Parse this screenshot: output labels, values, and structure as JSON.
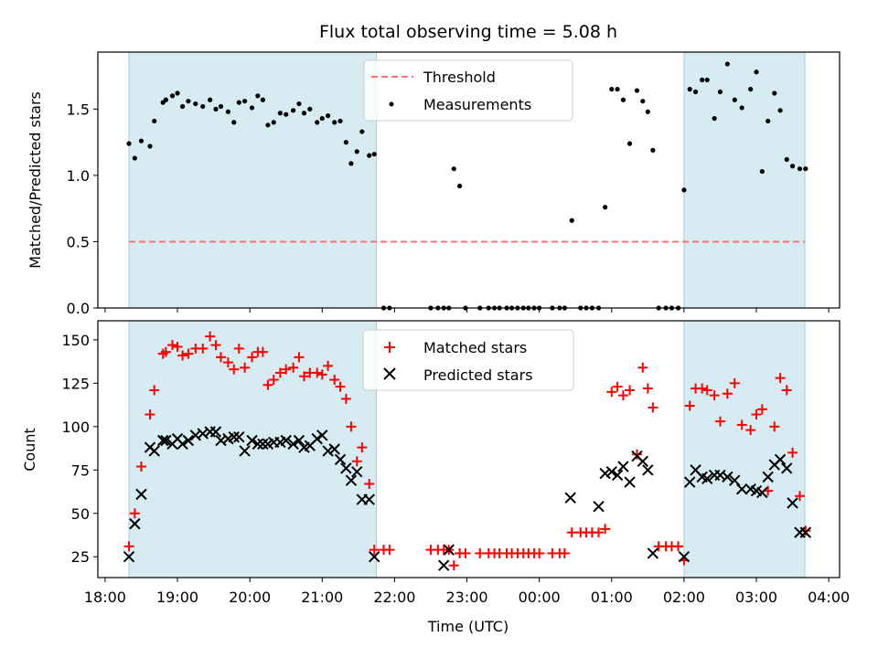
{
  "chart_data": {
    "type": "scatter",
    "title": "Flux total observing time = 5.08 h",
    "xlabel": "Time (UTC)",
    "x_ticks": [
      "18:00",
      "19:00",
      "20:00",
      "21:00",
      "22:00",
      "23:00",
      "00:00",
      "01:00",
      "02:00",
      "03:00",
      "04:00"
    ],
    "x_tick_hours": [
      18,
      19,
      20,
      21,
      22,
      23,
      24,
      25,
      26,
      27,
      28
    ],
    "xlim_hours": [
      17.9,
      28.15
    ],
    "observing_windows_hours": [
      [
        18.33,
        21.75
      ],
      [
        26.0,
        27.67
      ]
    ],
    "panels": [
      {
        "ylabel": "Matched/Predicted stars",
        "ylim": [
          0,
          1.93
        ],
        "yticks": [
          "0.0",
          "0.5",
          "1.0",
          "1.5"
        ],
        "ytick_values": [
          0,
          0.5,
          1.0,
          1.5
        ],
        "threshold": {
          "name": "Threshold",
          "value": 0.5,
          "color": "#ff7070",
          "x_range_hours": [
            18.33,
            27.67
          ]
        },
        "series": [
          {
            "name": "Measurements",
            "color": "#000000",
            "x": [
              18.33,
              18.41,
              18.5,
              18.62,
              18.68,
              18.8,
              18.84,
              18.93,
              19.0,
              19.07,
              19.15,
              19.25,
              19.35,
              19.45,
              19.53,
              19.6,
              19.7,
              19.78,
              19.85,
              19.93,
              20.03,
              20.11,
              20.18,
              20.25,
              20.33,
              20.42,
              20.5,
              20.6,
              20.68,
              20.75,
              20.83,
              20.93,
              21.0,
              21.08,
              21.17,
              21.25,
              21.33,
              21.4,
              21.48,
              21.55,
              21.65,
              21.72,
              21.85,
              21.93,
              22.5,
              22.6,
              22.68,
              22.75,
              22.82,
              22.9,
              22.98,
              23.18,
              23.3,
              23.38,
              23.45,
              23.55,
              23.62,
              23.7,
              23.78,
              23.85,
              23.93,
              24.0,
              24.18,
              24.28,
              24.35,
              24.45,
              24.57,
              24.65,
              24.73,
              24.82,
              24.91,
              25.0,
              25.08,
              25.16,
              25.25,
              25.35,
              25.43,
              25.5,
              25.57,
              25.65,
              25.75,
              25.83,
              25.92,
              26.0,
              26.08,
              26.16,
              26.25,
              26.32,
              26.42,
              26.5,
              26.6,
              26.7,
              26.8,
              26.92,
              27.0,
              27.08,
              27.16,
              27.25,
              27.33,
              27.42,
              27.5,
              27.6,
              27.68
            ],
            "y": [
              1.24,
              1.13,
              1.26,
              1.22,
              1.41,
              1.55,
              1.57,
              1.6,
              1.62,
              1.52,
              1.56,
              1.54,
              1.52,
              1.57,
              1.5,
              1.52,
              1.48,
              1.4,
              1.55,
              1.56,
              1.51,
              1.6,
              1.57,
              1.38,
              1.4,
              1.47,
              1.46,
              1.49,
              1.54,
              1.47,
              1.5,
              1.4,
              1.43,
              1.45,
              1.4,
              1.41,
              1.25,
              1.09,
              1.18,
              1.33,
              1.15,
              1.16,
              0,
              0,
              0,
              0,
              0,
              0,
              1.05,
              0.92,
              0,
              0,
              0,
              0,
              0,
              0,
              0,
              0,
              0,
              0,
              0,
              0,
              0,
              0,
              0,
              0.66,
              0,
              0,
              0,
              0,
              0.76,
              1.65,
              1.65,
              1.57,
              1.24,
              1.64,
              1.56,
              1.48,
              1.19,
              0,
              0,
              0,
              0,
              0.89,
              1.65,
              1.63,
              1.72,
              1.72,
              1.43,
              1.63,
              1.84,
              1.57,
              1.51,
              1.65,
              1.78,
              1.03,
              1.41,
              1.62,
              1.49,
              1.12,
              1.07,
              1.05,
              1.05
            ]
          }
        ],
        "legend": [
          "Threshold",
          "Measurements"
        ]
      },
      {
        "ylabel": "Count",
        "ylim": [
          13,
          161
        ],
        "yticks": [
          "25",
          "50",
          "75",
          "100",
          "125",
          "150"
        ],
        "ytick_values": [
          25,
          50,
          75,
          100,
          125,
          150
        ],
        "series": [
          {
            "name": "Matched stars",
            "color": "#ff0000",
            "marker": "+",
            "x": [
              18.33,
              18.41,
              18.5,
              18.62,
              18.68,
              18.8,
              18.84,
              18.93,
              19.0,
              19.07,
              19.15,
              19.25,
              19.35,
              19.45,
              19.53,
              19.6,
              19.7,
              19.78,
              19.85,
              19.93,
              20.03,
              20.11,
              20.18,
              20.25,
              20.33,
              20.42,
              20.5,
              20.6,
              20.68,
              20.75,
              20.83,
              20.93,
              21.0,
              21.08,
              21.17,
              21.25,
              21.33,
              21.4,
              21.48,
              21.55,
              21.65,
              21.72,
              21.85,
              21.93,
              22.5,
              22.6,
              22.68,
              22.75,
              22.82,
              22.9,
              22.98,
              23.18,
              23.3,
              23.38,
              23.45,
              23.55,
              23.62,
              23.7,
              23.78,
              23.85,
              23.93,
              24.0,
              24.18,
              24.28,
              24.35,
              24.45,
              24.57,
              24.65,
              24.73,
              24.82,
              24.91,
              25.0,
              25.08,
              25.16,
              25.25,
              25.35,
              25.43,
              25.5,
              25.57,
              25.65,
              25.75,
              25.83,
              25.92,
              26.0,
              26.08,
              26.16,
              26.25,
              26.32,
              26.42,
              26.5,
              26.6,
              26.7,
              26.8,
              26.92,
              27.0,
              27.08,
              27.16,
              27.25,
              27.33,
              27.42,
              27.5,
              27.6,
              27.68
            ],
            "y": [
              31,
              50,
              77,
              107,
              121,
              142,
              143,
              147,
              146,
              141,
              142,
              145,
              145,
              152,
              147,
              140,
              137,
              133,
              145,
              134,
              140,
              143,
              143,
              124,
              127,
              131,
              133,
              134,
              140,
              129,
              131,
              131,
              130,
              135,
              127,
              123,
              116,
              100,
              80,
              88,
              67,
              29,
              29,
              29,
              29,
              29,
              29,
              29,
              20,
              27,
              27,
              27,
              27,
              27,
              27,
              27,
              27,
              27,
              27,
              27,
              27,
              27,
              27,
              27,
              27,
              39,
              39,
              39,
              39,
              39,
              41,
              120,
              123,
              118,
              121,
              84,
              134,
              122,
              111,
              31,
              31,
              31,
              31,
              23,
              112,
              122,
              122,
              121,
              118,
              103,
              119,
              125,
              101,
              98,
              107,
              110,
              63,
              100,
              128,
              121,
              85,
              60,
              40
            ]
          },
          {
            "name": "Predicted stars",
            "color": "#000000",
            "marker": "x",
            "x": [
              18.33,
              18.41,
              18.5,
              18.62,
              18.68,
              18.8,
              18.84,
              18.93,
              19.0,
              19.07,
              19.15,
              19.25,
              19.35,
              19.45,
              19.53,
              19.6,
              19.7,
              19.78,
              19.85,
              19.93,
              20.03,
              20.11,
              20.18,
              20.25,
              20.33,
              20.42,
              20.5,
              20.6,
              20.68,
              20.75,
              20.83,
              20.93,
              21.0,
              21.08,
              21.17,
              21.25,
              21.33,
              21.4,
              21.48,
              21.55,
              21.65,
              21.72,
              22.68,
              22.75,
              24.43,
              24.82,
              24.91,
              25.0,
              25.08,
              25.16,
              25.25,
              25.35,
              25.43,
              25.5,
              25.57,
              26.0,
              26.08,
              26.16,
              26.25,
              26.32,
              26.42,
              26.5,
              26.6,
              26.7,
              26.8,
              26.92,
              27.0,
              27.08,
              27.16,
              27.25,
              27.33,
              27.42,
              27.5,
              27.6,
              27.68
            ],
            "y": [
              25,
              44,
              61,
              88,
              86,
              92,
              92,
              90,
              93,
              90,
              92,
              95,
              96,
              97,
              97,
              92,
              93,
              94,
              94,
              86,
              92,
              90,
              90,
              90,
              91,
              91,
              92,
              90,
              92,
              88,
              89,
              93,
              95,
              86,
              87,
              81,
              76,
              69,
              74,
              58,
              58,
              25,
              20,
              29,
              59,
              54,
              73,
              74,
              72,
              77,
              68,
              83,
              80,
              75,
              27,
              25,
              68,
              75,
              71,
              70,
              72,
              72,
              71,
              69,
              64,
              64,
              63,
              62,
              71,
              78,
              81,
              76,
              56,
              39,
              39
            ]
          }
        ],
        "legend": [
          "Matched stars",
          "Predicted stars"
        ]
      }
    ]
  }
}
